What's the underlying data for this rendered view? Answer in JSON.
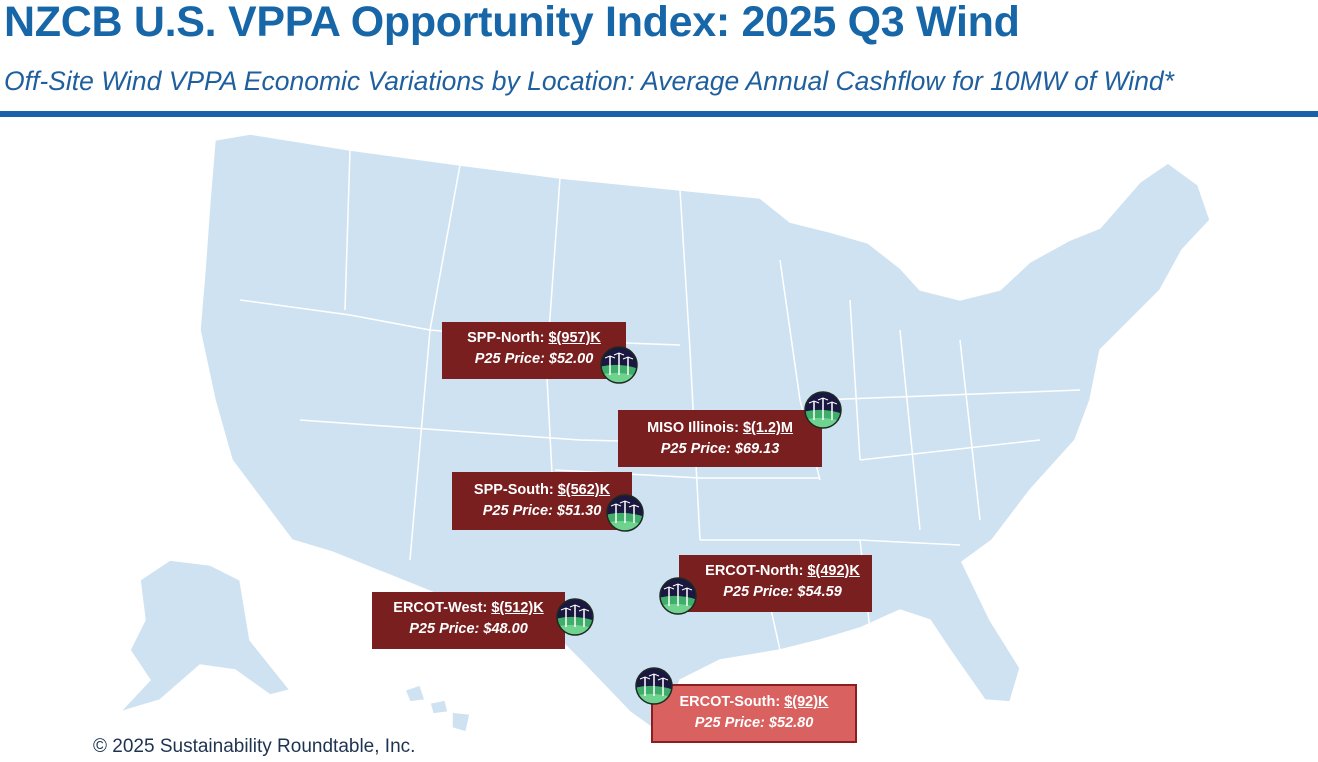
{
  "header": {
    "title": "NZCB U.S. VPPA Opportunity Index: 2025 Q3 Wind",
    "subtitle": "Off-Site Wind VPPA Economic Variations by Location: Average Annual Cashflow for 10MW of Wind*"
  },
  "colors": {
    "brand": "#1666a8",
    "negative_box": "#7a1f1f",
    "highlight_box": "#d9615f",
    "land": "#cfe2f1"
  },
  "markers": [
    {
      "region": "SPP-North:",
      "cashflow": "$(957)K",
      "price_label": "P25 Price:",
      "price": "$52.00",
      "icon": "wind-turbine-icon"
    },
    {
      "region": "MISO Illinois:",
      "cashflow": "$(1.2)M",
      "price_label": "P25 Price:",
      "price": "$69.13",
      "icon": "wind-turbine-icon"
    },
    {
      "region": "SPP-South:",
      "cashflow": "$(562)K",
      "price_label": "P25 Price:",
      "price": "$51.30",
      "icon": "wind-turbine-icon"
    },
    {
      "region": "ERCOT-North:",
      "cashflow": "$(492)K",
      "price_label": "P25 Price:",
      "price": "$54.59",
      "icon": "wind-turbine-icon"
    },
    {
      "region": "ERCOT-West:",
      "cashflow": "$(512)K",
      "price_label": "P25 Price:",
      "price": "$48.00",
      "icon": "wind-turbine-icon"
    },
    {
      "region": "ERCOT-South:",
      "cashflow": "$(92)K",
      "price_label": "P25 Price:",
      "price": "$52.80",
      "icon": "wind-turbine-icon"
    }
  ],
  "footer": {
    "copyright": "© 2025 Sustainability Roundtable, Inc."
  }
}
